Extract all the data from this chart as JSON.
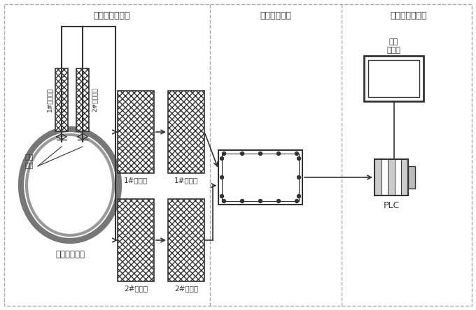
{
  "section_labels": [
    "样气预处理系统",
    "气体分析系统",
    "计算机控制系统"
  ],
  "pipe_label": "炉顶煤气主管",
  "probe_label": "采样\n探头",
  "pre1_label": "1#前置处理",
  "pre2_label": "2#前置处理",
  "proc1_label": "1#预处理",
  "proc2_label": "2#预处理",
  "fine1_label": "1#精处理",
  "fine2_label": "2#精处理",
  "computer_label": "工业\n计算机",
  "plc_label": "PLC",
  "lc": "#333333",
  "gray": "#888888",
  "dash_color": "#aaaaaa"
}
